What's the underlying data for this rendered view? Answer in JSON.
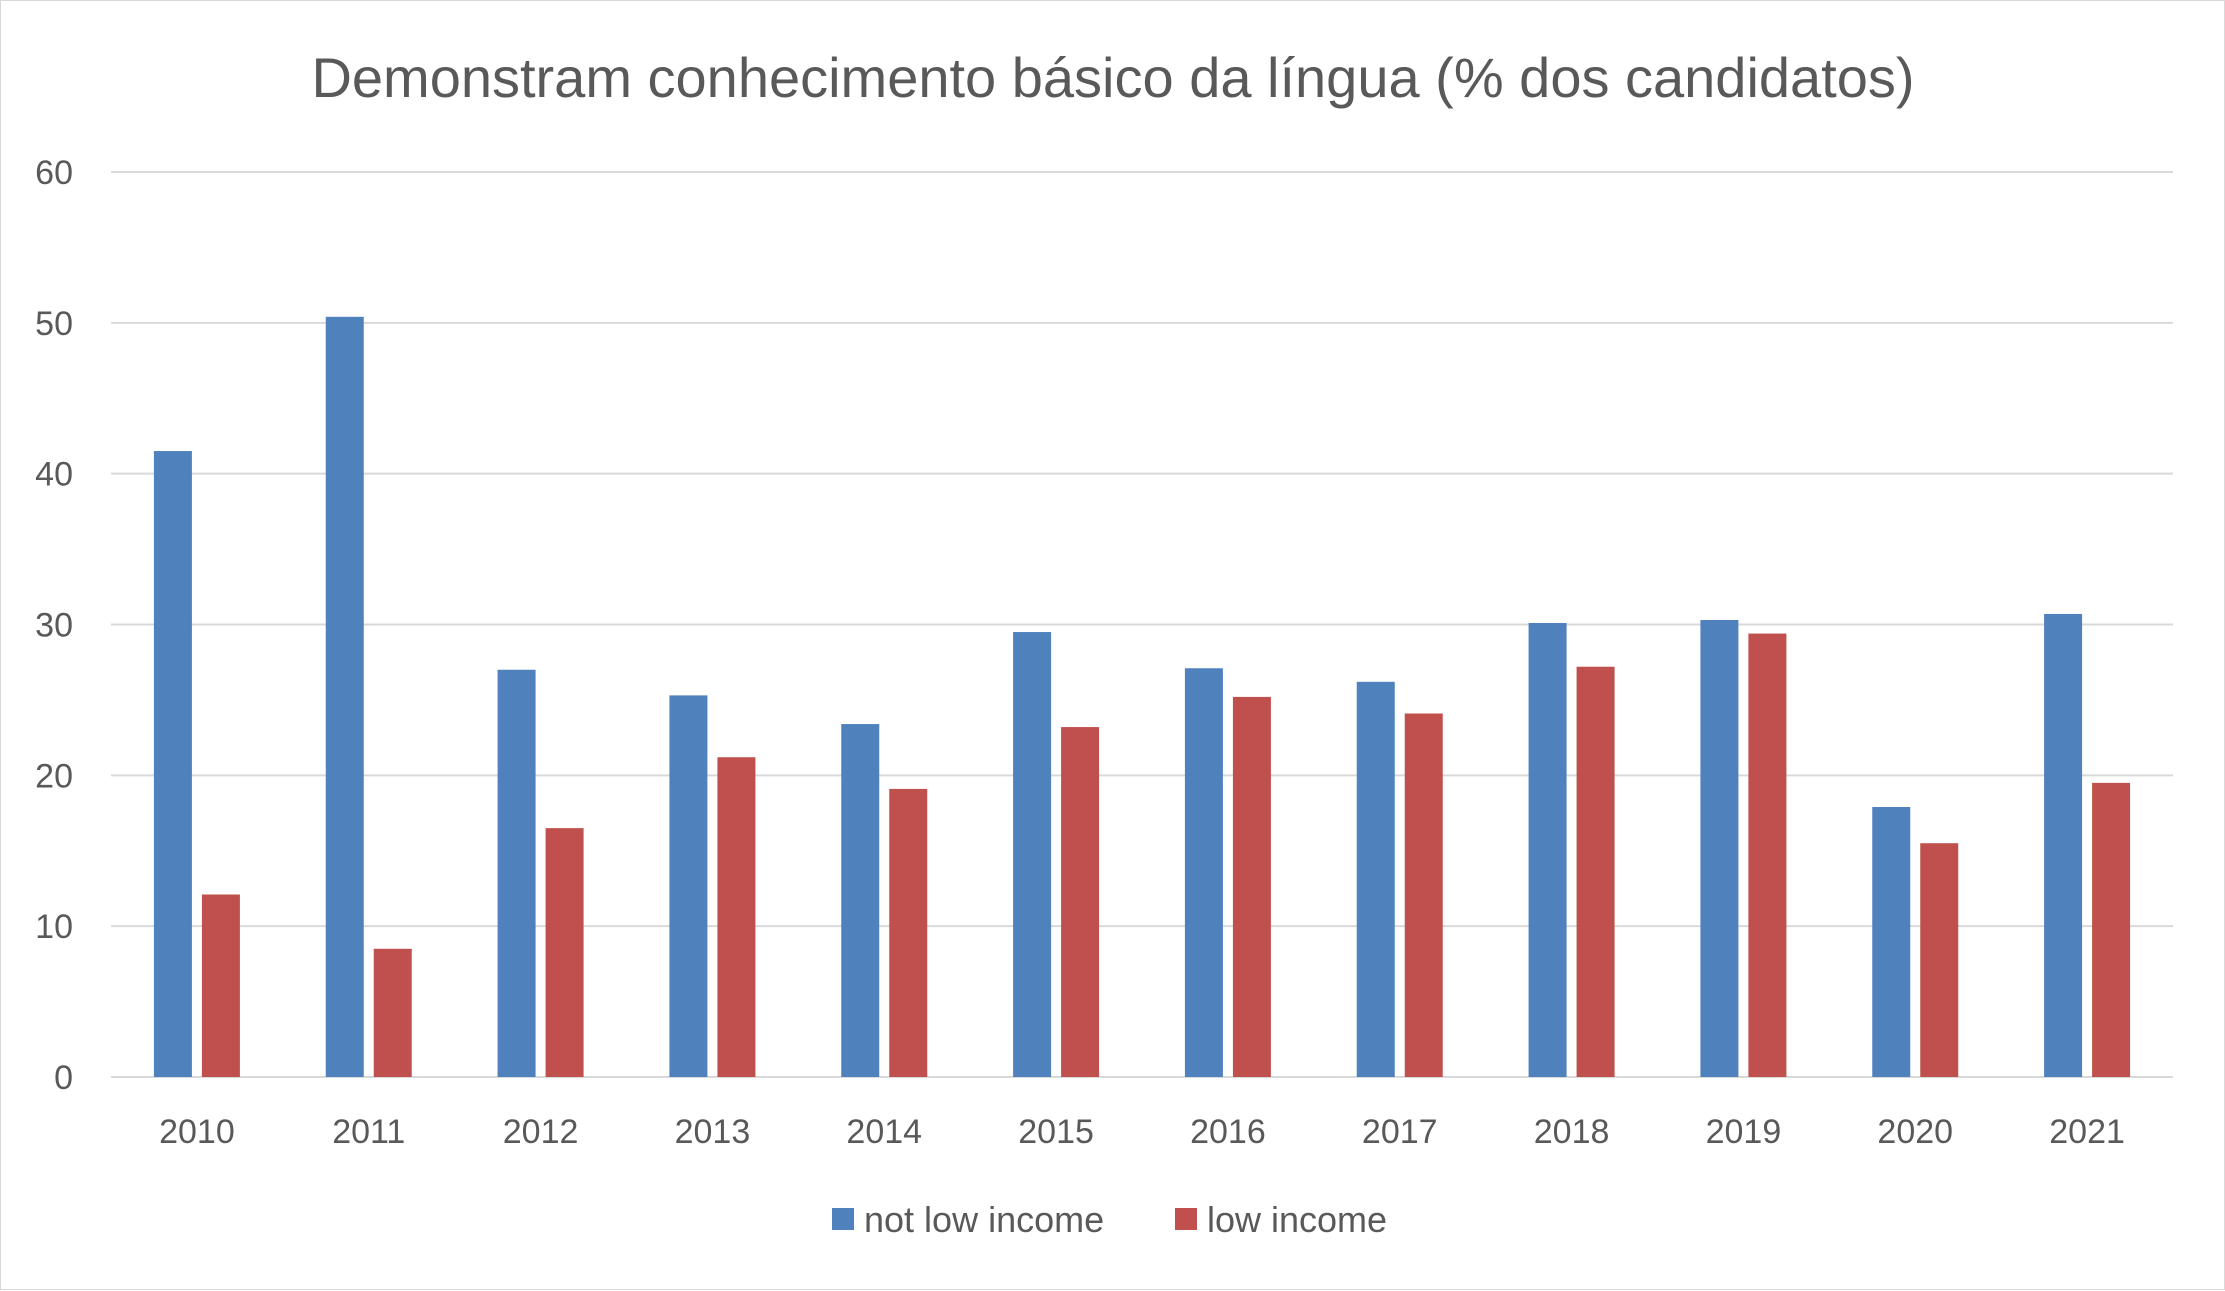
{
  "chart_data": {
    "type": "bar",
    "title": "Demonstram conhecimento básico da língua (% dos candidatos)",
    "xlabel": "",
    "ylabel": "",
    "categories": [
      "2010",
      "2011",
      "2012",
      "2013",
      "2014",
      "2015",
      "2016",
      "2017",
      "2018",
      "2019",
      "2020",
      "2021"
    ],
    "series": [
      {
        "name": "not low income",
        "color": "#4F81BD",
        "values": [
          41.5,
          50.4,
          27.0,
          25.3,
          23.4,
          29.5,
          27.1,
          26.2,
          30.1,
          30.3,
          17.9,
          30.7
        ]
      },
      {
        "name": "low income",
        "color": "#C0504D",
        "values": [
          12.1,
          8.5,
          16.5,
          21.2,
          19.1,
          23.2,
          25.2,
          24.1,
          27.2,
          29.4,
          15.5,
          19.5
        ]
      }
    ],
    "ylim": [
      0,
      60
    ],
    "yticks": [
      "0",
      "10",
      "20",
      "30",
      "40",
      "50",
      "60"
    ],
    "grid": true,
    "gridline_color": "#d9d9d9",
    "legend_position": "bottom"
  }
}
